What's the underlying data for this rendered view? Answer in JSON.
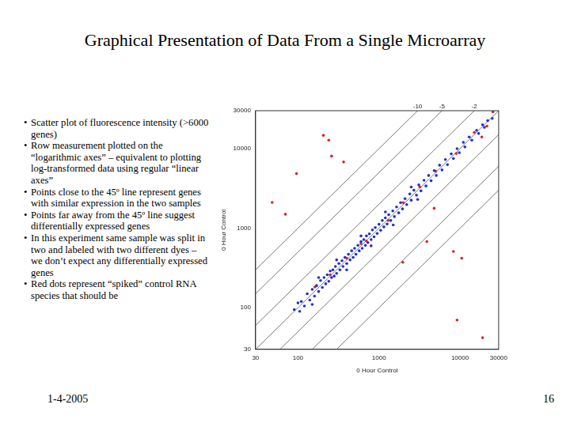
{
  "slide": {
    "title": "Graphical Presentation of Data From a Single Microarray",
    "bullets": [
      "Scatter plot of fluorescence intensity (>6000 genes)",
      "Row measurement plotted on the “logarithmic axes” – equivalent to plotting log-transformed data using regular “linear axes”",
      "Points close to the 45º line represent genes with similar expression in the two samples",
      "Points far away from the 45º line suggest differentially expressed genes",
      "In this experiment same sample was split in two and labeled with two different dyes – we don’t expect any differentially expressed genes",
      "Red dots represent “spiked” control RNA species that should be"
    ],
    "date": "1-4-2005",
    "page_number": "16"
  },
  "chart_data": {
    "type": "scatter",
    "x_label": "0 Hour Control",
    "y_label": "0 Hour Control",
    "log": true,
    "grid": false,
    "xlim": [
      30,
      30000
    ],
    "ylim": [
      30,
      30000
    ],
    "xticks": [
      30,
      100,
      1000,
      10000,
      30000
    ],
    "yticks": [
      30,
      100,
      1000,
      10000,
      30000
    ],
    "fold_lines": [
      {
        "ratio": 10,
        "label": "-10"
      },
      {
        "ratio": 5,
        "label": "-5"
      },
      {
        "ratio": 2,
        "label": "-2"
      },
      {
        "ratio": 1
      },
      {
        "ratio": 0.5
      },
      {
        "ratio": 0.2
      },
      {
        "ratio": 0.1
      }
    ],
    "series": [
      {
        "color": "#1f2fd6",
        "marker": "circle",
        "values": [
          [
            90,
            95
          ],
          [
            100,
            115
          ],
          [
            105,
            90
          ],
          [
            110,
            120
          ],
          [
            120,
            105
          ],
          [
            130,
            150
          ],
          [
            140,
            125
          ],
          [
            150,
            170
          ],
          [
            150,
            110
          ],
          [
            160,
            140
          ],
          [
            170,
            190
          ],
          [
            180,
            160
          ],
          [
            180,
            240
          ],
          [
            190,
            220
          ],
          [
            200,
            180
          ],
          [
            210,
            240
          ],
          [
            220,
            200
          ],
          [
            230,
            260
          ],
          [
            240,
            215
          ],
          [
            250,
            290
          ],
          [
            260,
            240
          ],
          [
            270,
            300
          ],
          [
            280,
            250
          ],
          [
            290,
            330
          ],
          [
            300,
            270
          ],
          [
            300,
            400
          ],
          [
            320,
            360
          ],
          [
            330,
            300
          ],
          [
            350,
            390
          ],
          [
            360,
            330
          ],
          [
            380,
            430
          ],
          [
            400,
            360
          ],
          [
            400,
            300
          ],
          [
            420,
            470
          ],
          [
            440,
            400
          ],
          [
            460,
            520
          ],
          [
            480,
            430
          ],
          [
            500,
            560
          ],
          [
            520,
            470
          ],
          [
            550,
            610
          ],
          [
            570,
            520
          ],
          [
            600,
            680
          ],
          [
            600,
            800
          ],
          [
            620,
            560
          ],
          [
            650,
            720
          ],
          [
            680,
            610
          ],
          [
            700,
            800
          ],
          [
            730,
            660
          ],
          [
            760,
            850
          ],
          [
            800,
            720
          ],
          [
            800,
            600
          ],
          [
            830,
            950
          ],
          [
            870,
            780
          ],
          [
            900,
            1020
          ],
          [
            950,
            860
          ],
          [
            1000,
            1120
          ],
          [
            1050,
            940
          ],
          [
            1100,
            1250
          ],
          [
            1150,
            1040
          ],
          [
            1200,
            1350
          ],
          [
            1200,
            1600
          ],
          [
            1260,
            1130
          ],
          [
            1320,
            1480
          ],
          [
            1400,
            1250
          ],
          [
            1480,
            1650
          ],
          [
            1500,
            1100
          ],
          [
            1550,
            1400
          ],
          [
            1650,
            1850
          ],
          [
            1750,
            1560
          ],
          [
            1850,
            2100
          ],
          [
            1950,
            1750
          ],
          [
            2100,
            2350
          ],
          [
            2200,
            1980
          ],
          [
            2400,
            2700
          ],
          [
            2500,
            2250
          ],
          [
            2500,
            3300
          ],
          [
            2700,
            3000
          ],
          [
            2900,
            2600
          ],
          [
            3000,
            2300
          ],
          [
            3100,
            3500
          ],
          [
            3300,
            2950
          ],
          [
            3600,
            4000
          ],
          [
            3800,
            3400
          ],
          [
            4100,
            4600
          ],
          [
            4400,
            3950
          ],
          [
            4800,
            5300
          ],
          [
            5100,
            4600
          ],
          [
            5600,
            6200
          ],
          [
            6000,
            5400
          ],
          [
            6600,
            7300
          ],
          [
            7000,
            6300
          ],
          [
            7800,
            8600
          ],
          [
            8300,
            7500
          ],
          [
            9200,
            10000
          ],
          [
            9800,
            8900
          ],
          [
            11000,
            12000
          ],
          [
            11500,
            10500
          ],
          [
            13000,
            14000
          ],
          [
            14000,
            12800
          ],
          [
            16000,
            17000
          ],
          [
            17000,
            15500
          ],
          [
            19000,
            20000
          ],
          [
            20000,
            18500
          ],
          [
            22000,
            22500
          ],
          [
            25000,
            24000
          ]
        ]
      },
      {
        "color": "#e0202a",
        "marker": "circle",
        "values": [
          [
            48,
            2110
          ],
          [
            70,
            1500
          ],
          [
            96,
            4860
          ],
          [
            206,
            14700
          ],
          [
            240,
            12800
          ],
          [
            260,
            8060
          ],
          [
            366,
            6800
          ],
          [
            162,
            182
          ],
          [
            250,
            260
          ],
          [
            400,
            420
          ],
          [
            600,
            640
          ],
          [
            700,
            690
          ],
          [
            1300,
            1250
          ],
          [
            2000,
            2100
          ],
          [
            3200,
            3300
          ],
          [
            5000,
            5200
          ],
          [
            9000,
            8700
          ],
          [
            15000,
            16000
          ],
          [
            18600,
            14000
          ],
          [
            21500,
            19200
          ],
          [
            25500,
            29000
          ],
          [
            4800,
            1780
          ],
          [
            3900,
            680
          ],
          [
            1970,
            373
          ],
          [
            8300,
            510
          ],
          [
            10500,
            420
          ],
          [
            9200,
            70
          ],
          [
            19000,
            42
          ]
        ]
      }
    ]
  }
}
